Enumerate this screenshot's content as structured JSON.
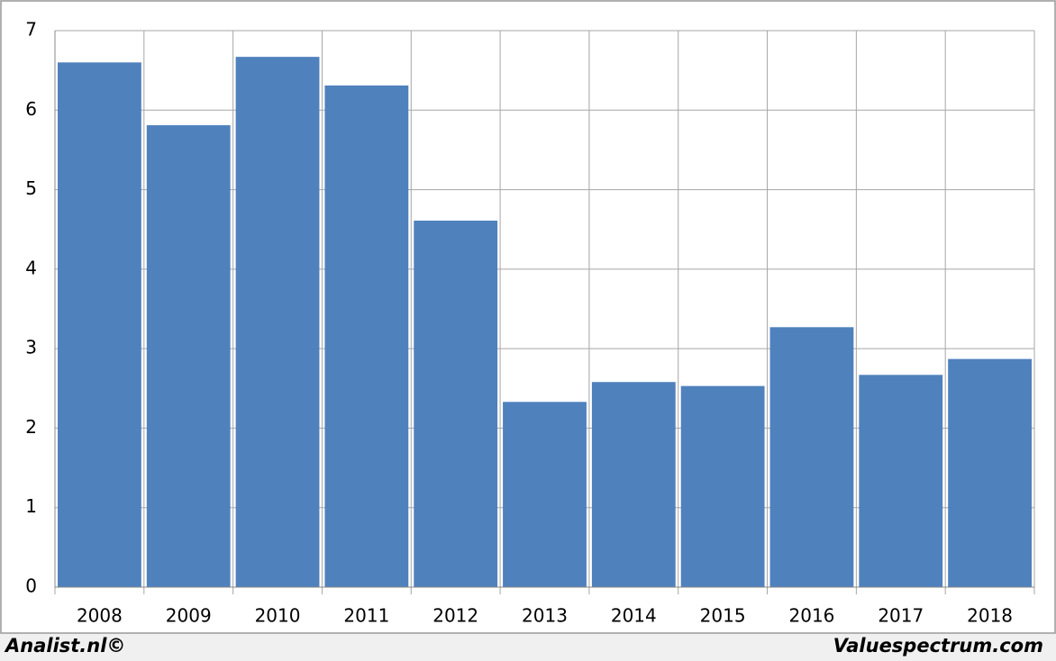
{
  "chart_data": {
    "type": "bar",
    "categories": [
      "2008",
      "2009",
      "2010",
      "2011",
      "2012",
      "2013",
      "2014",
      "2015",
      "2016",
      "2017",
      "2018"
    ],
    "values": [
      6.6,
      5.81,
      6.67,
      6.31,
      4.61,
      2.33,
      2.58,
      2.53,
      3.27,
      2.67,
      2.87
    ],
    "color": "#4f81bd",
    "ylim": [
      0,
      7
    ],
    "yticks": [
      0,
      1,
      2,
      3,
      4,
      5,
      6,
      7
    ],
    "grid": true
  },
  "footer": {
    "left": "Analist.nl©",
    "right": "Valuespectrum.com"
  }
}
